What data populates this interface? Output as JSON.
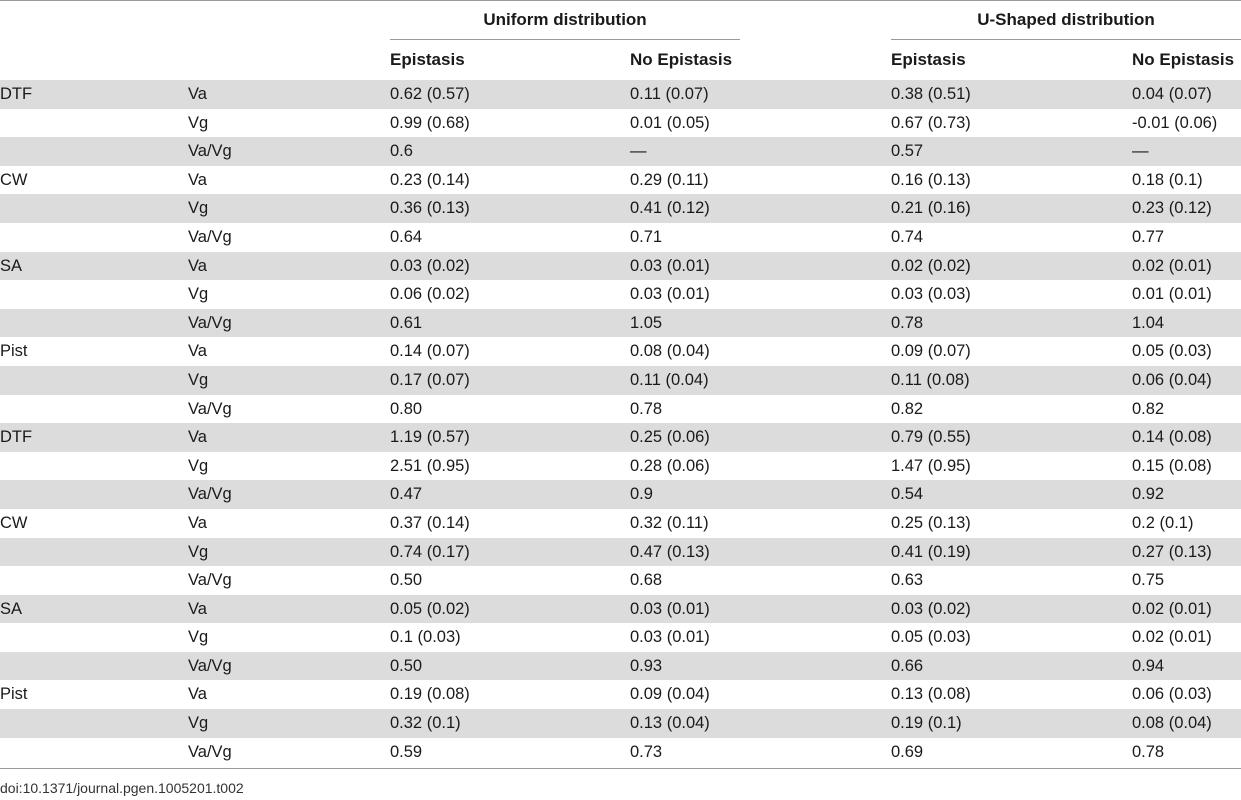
{
  "header": {
    "group_uniform": "Uniform distribution",
    "group_ushaped": "U-Shaped distribution",
    "sub_epistasis": "Epistasis",
    "sub_no_epistasis": "No Epistasis"
  },
  "rows": [
    {
      "trait": "DTF",
      "param": "Va",
      "u_epi": "0.62 (0.57)",
      "u_noepi": "0.11 (0.07)",
      "s_epi": "0.38 (0.51)",
      "s_noepi": "0.04 (0.07)"
    },
    {
      "trait": "",
      "param": "Vg",
      "u_epi": "0.99 (0.68)",
      "u_noepi": "0.01 (0.05)",
      "s_epi": "0.67 (0.73)",
      "s_noepi": "-0.01 (0.06)"
    },
    {
      "trait": "",
      "param": "Va/Vg",
      "u_epi": "0.6",
      "u_noepi": "—",
      "s_epi": "0.57",
      "s_noepi": "—"
    },
    {
      "trait": "CW",
      "param": "Va",
      "u_epi": "0.23 (0.14)",
      "u_noepi": "0.29 (0.11)",
      "s_epi": "0.16 (0.13)",
      "s_noepi": "0.18 (0.1)"
    },
    {
      "trait": "",
      "param": "Vg",
      "u_epi": "0.36 (0.13)",
      "u_noepi": "0.41 (0.12)",
      "s_epi": "0.21 (0.16)",
      "s_noepi": "0.23 (0.12)"
    },
    {
      "trait": "",
      "param": "Va/Vg",
      "u_epi": "0.64",
      "u_noepi": "0.71",
      "s_epi": "0.74",
      "s_noepi": "0.77"
    },
    {
      "trait": "SA",
      "param": "Va",
      "u_epi": "0.03 (0.02)",
      "u_noepi": "0.03 (0.01)",
      "s_epi": "0.02 (0.02)",
      "s_noepi": "0.02 (0.01)"
    },
    {
      "trait": "",
      "param": "Vg",
      "u_epi": "0.06 (0.02)",
      "u_noepi": "0.03 (0.01)",
      "s_epi": "0.03 (0.03)",
      "s_noepi": "0.01 (0.01)"
    },
    {
      "trait": "",
      "param": "Va/Vg",
      "u_epi": "0.61",
      "u_noepi": "1.05",
      "s_epi": "0.78",
      "s_noepi": "1.04"
    },
    {
      "trait": "Pist",
      "param": "Va",
      "u_epi": "0.14 (0.07)",
      "u_noepi": "0.08 (0.04)",
      "s_epi": "0.09 (0.07)",
      "s_noepi": "0.05 (0.03)"
    },
    {
      "trait": "",
      "param": "Vg",
      "u_epi": "0.17 (0.07)",
      "u_noepi": "0.11 (0.04)",
      "s_epi": "0.11 (0.08)",
      "s_noepi": "0.06 (0.04)"
    },
    {
      "trait": "",
      "param": "Va/Vg",
      "u_epi": "0.80",
      "u_noepi": "0.78",
      "s_epi": "0.82",
      "s_noepi": "0.82"
    },
    {
      "trait": "DTF",
      "param": "Va",
      "u_epi": "1.19 (0.57)",
      "u_noepi": "0.25 (0.06)",
      "s_epi": "0.79 (0.55)",
      "s_noepi": "0.14 (0.08)"
    },
    {
      "trait": "",
      "param": "Vg",
      "u_epi": "2.51 (0.95)",
      "u_noepi": "0.28 (0.06)",
      "s_epi": "1.47 (0.95)",
      "s_noepi": "0.15 (0.08)"
    },
    {
      "trait": "",
      "param": "Va/Vg",
      "u_epi": "0.47",
      "u_noepi": "0.9",
      "s_epi": "0.54",
      "s_noepi": "0.92"
    },
    {
      "trait": "CW",
      "param": "Va",
      "u_epi": "0.37 (0.14)",
      "u_noepi": "0.32 (0.11)",
      "s_epi": "0.25 (0.13)",
      "s_noepi": "0.2 (0.1)"
    },
    {
      "trait": "",
      "param": "Vg",
      "u_epi": "0.74 (0.17)",
      "u_noepi": "0.47 (0.13)",
      "s_epi": "0.41 (0.19)",
      "s_noepi": "0.27 (0.13)"
    },
    {
      "trait": "",
      "param": "Va/Vg",
      "u_epi": "0.50",
      "u_noepi": "0.68",
      "s_epi": "0.63",
      "s_noepi": "0.75"
    },
    {
      "trait": "SA",
      "param": "Va",
      "u_epi": "0.05 (0.02)",
      "u_noepi": "0.03 (0.01)",
      "s_epi": "0.03 (0.02)",
      "s_noepi": "0.02 (0.01)"
    },
    {
      "trait": "",
      "param": "Vg",
      "u_epi": "0.1 (0.03)",
      "u_noepi": "0.03 (0.01)",
      "s_epi": "0.05 (0.03)",
      "s_noepi": "0.02 (0.01)"
    },
    {
      "trait": "",
      "param": "Va/Vg",
      "u_epi": "0.50",
      "u_noepi": "0.93",
      "s_epi": "0.66",
      "s_noepi": "0.94"
    },
    {
      "trait": "Pist",
      "param": "Va",
      "u_epi": "0.19 (0.08)",
      "u_noepi": "0.09 (0.04)",
      "s_epi": "0.13 (0.08)",
      "s_noepi": "0.06 (0.03)"
    },
    {
      "trait": "",
      "param": "Vg",
      "u_epi": "0.32 (0.1)",
      "u_noepi": "0.13 (0.04)",
      "s_epi": "0.19 (0.1)",
      "s_noepi": "0.08 (0.04)"
    },
    {
      "trait": "",
      "param": "Va/Vg",
      "u_epi": "0.59",
      "u_noepi": "0.73",
      "s_epi": "0.69",
      "s_noepi": "0.78"
    }
  ],
  "footer": {
    "doi": "doi:10.1371/journal.pgen.1005201.t002"
  },
  "colors": {
    "shaded_row": "#dcdcdc",
    "rule": "#9a9a9a"
  }
}
